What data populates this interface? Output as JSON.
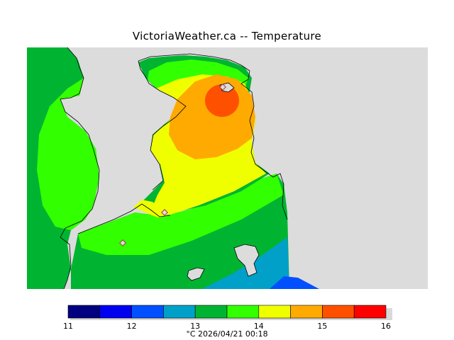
{
  "title": "VictoriaWeather.ca -- Temperature",
  "map": {
    "land_color": "#dcdcdc",
    "stations": [
      "marker",
      "marker",
      "marker"
    ]
  },
  "colorbar": {
    "colors": [
      "#000080",
      "#0000f0",
      "#0050ff",
      "#00a0c8",
      "#00b432",
      "#32ff00",
      "#f0ff00",
      "#ffaa00",
      "#ff5000",
      "#ff0000"
    ],
    "ticks": [
      "11",
      "12",
      "13",
      "14",
      "15",
      "16"
    ],
    "caption": "°C  2026/04/21 00:18"
  }
}
